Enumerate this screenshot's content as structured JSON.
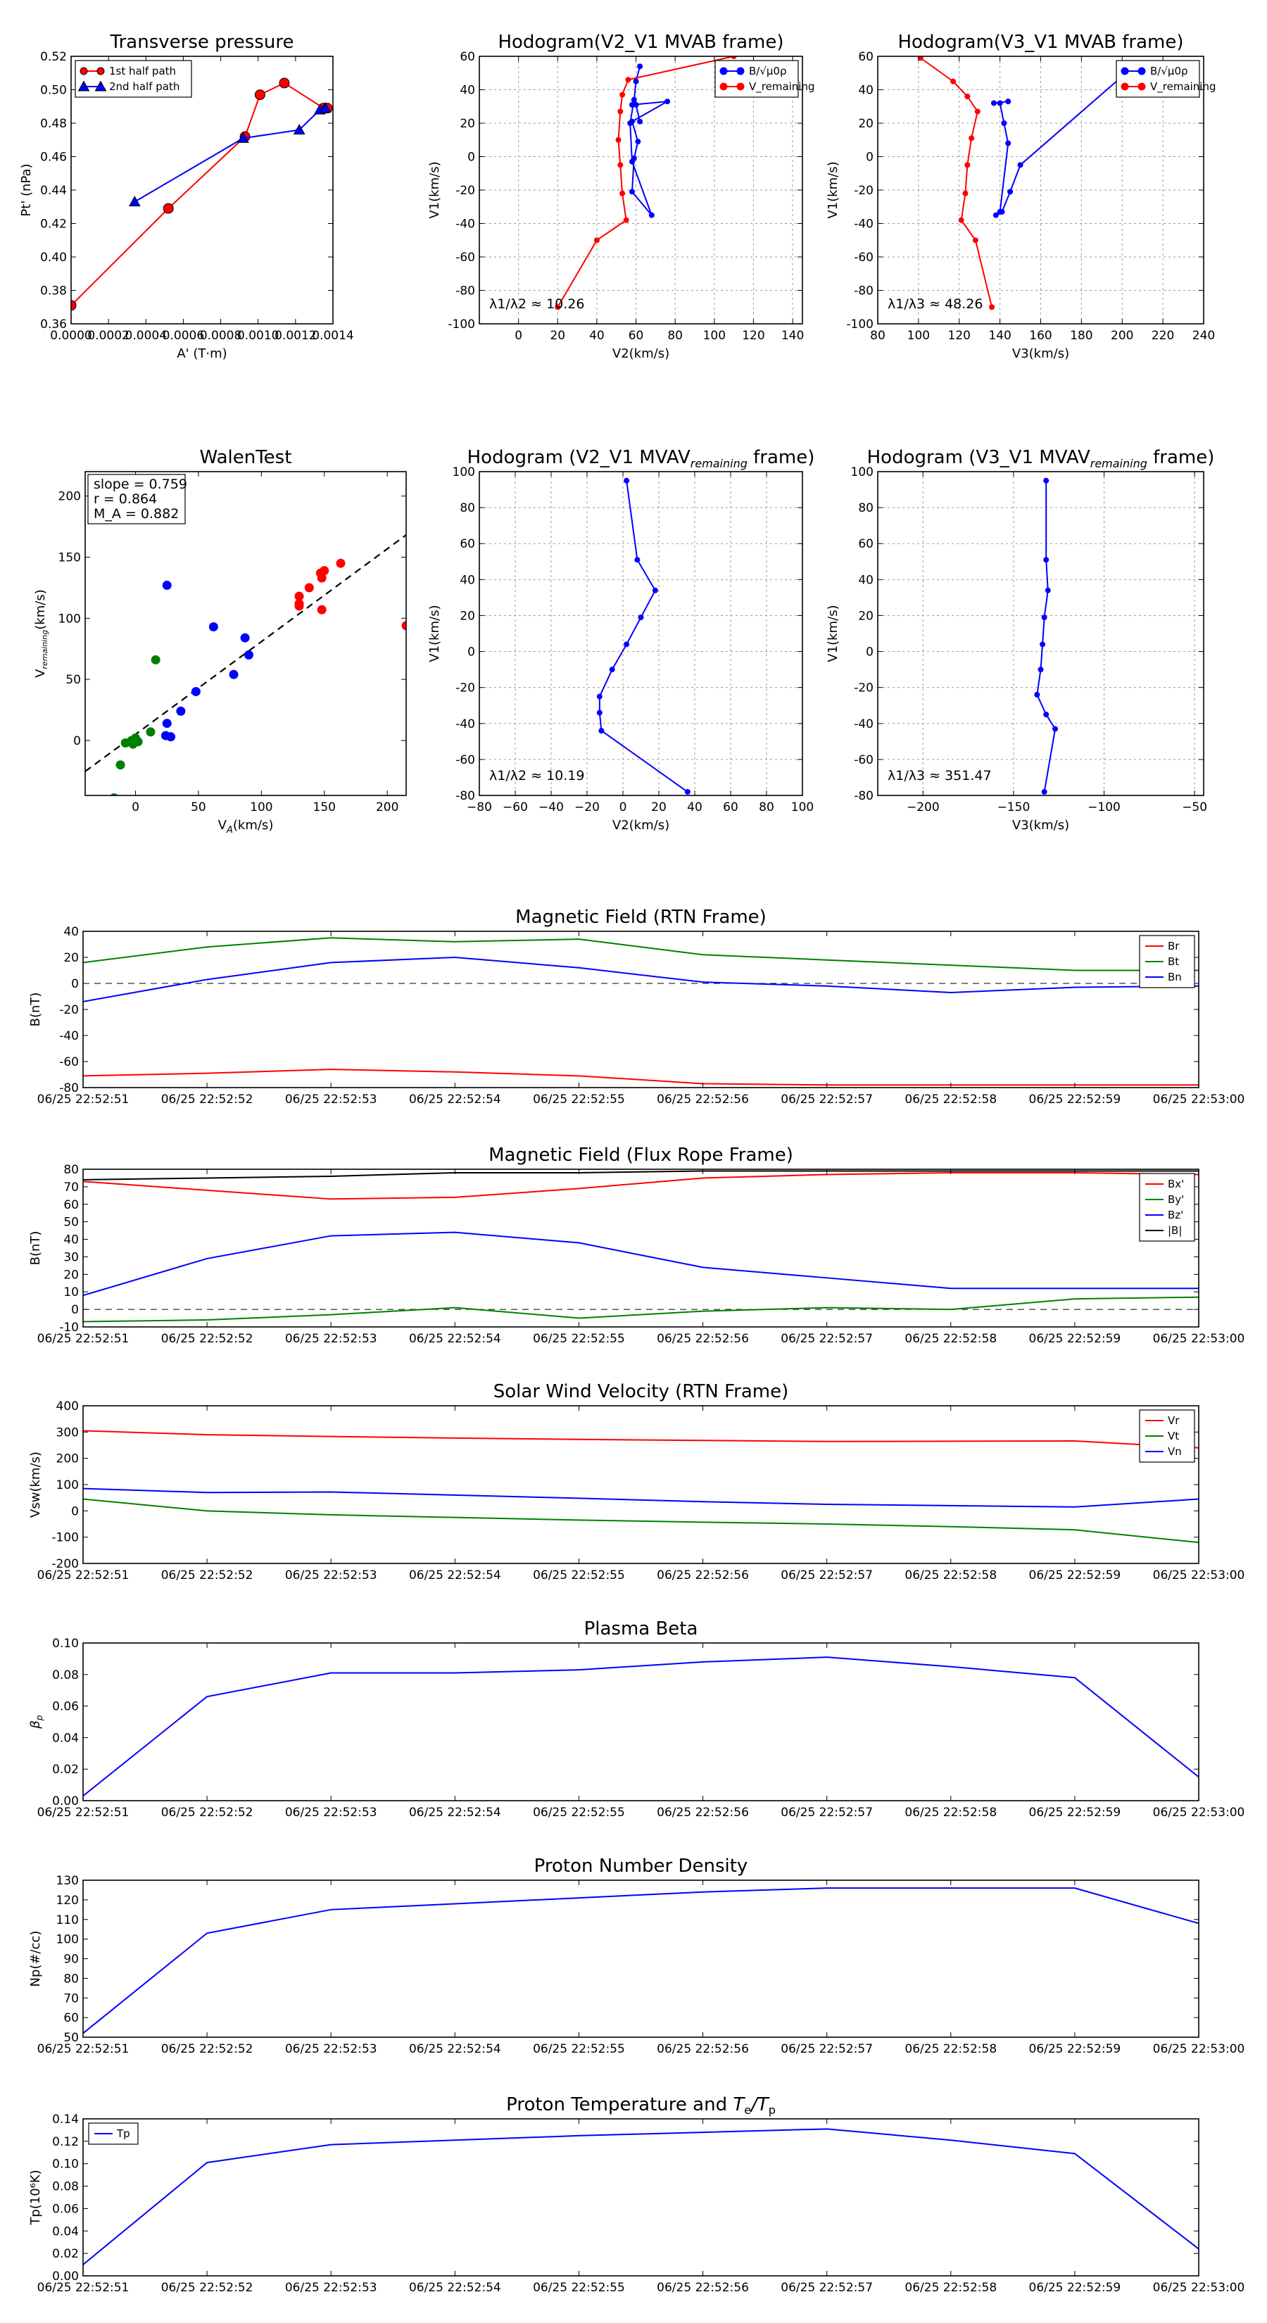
{
  "chart_data": [
    {
      "id": "tp",
      "type": "line",
      "title": "Transverse pressure",
      "xlabel": "A' (T·m)",
      "ylabel": "Pt' (nPa)",
      "xlim": [
        0,
        0.0014
      ],
      "ylim": [
        0.36,
        0.52
      ],
      "grid": false,
      "xticks": [
        0,
        0.0002,
        0.0004,
        0.0006,
        0.0008,
        0.001,
        0.0012,
        0.0014
      ],
      "xtick_labels": [
        "0.0000",
        "0.0002",
        "0.0004",
        "0.0006",
        "0.0008",
        "0.0010",
        "0.0012",
        "0.0014"
      ],
      "yticks": [
        0.36,
        0.38,
        0.4,
        0.42,
        0.44,
        0.46,
        0.48,
        0.5,
        0.52
      ],
      "ytick_labels": [
        "0.36",
        "0.38",
        "0.40",
        "0.42",
        "0.44",
        "0.46",
        "0.48",
        "0.50",
        "0.52"
      ],
      "legend_position": "top-left",
      "series": [
        {
          "name": "1st half path",
          "color": "#ff0000",
          "marker": "circle",
          "x": [
            0,
            0.00052,
            0.00093,
            0.00101,
            0.00114,
            0.00135,
            0.00137
          ],
          "y": [
            0.371,
            0.429,
            0.472,
            0.497,
            0.504,
            0.489,
            0.489
          ]
        },
        {
          "name": "2nd half path",
          "color": "#0000ff",
          "marker": "triangle",
          "x": [
            0.00034,
            0.00092,
            0.00122,
            0.00133,
            0.00136
          ],
          "y": [
            0.433,
            0.471,
            0.476,
            0.488,
            0.489
          ]
        }
      ]
    },
    {
      "id": "h2",
      "type": "line",
      "title": "Hodogram(V2_V1 MVAB frame)",
      "xlabel": "V2(km/s)",
      "ylabel": "V1(km/s)",
      "xlim": [
        -20,
        145
      ],
      "ylim": [
        -100,
        60
      ],
      "grid": true,
      "xticks": [
        0,
        20,
        40,
        60,
        80,
        100,
        120,
        140
      ],
      "yticks": [
        -100,
        -80,
        -60,
        -40,
        -20,
        0,
        20,
        40,
        60
      ],
      "legend_position": "top-right",
      "annotation": "λ1/λ2 ≈ 10.26",
      "series": [
        {
          "name": "B/√μ0ρ",
          "color": "#0000ff",
          "marker": "dot",
          "x": [
            62,
            60,
            59,
            57,
            58,
            68,
            58,
            59,
            61,
            58,
            76,
            58,
            60,
            62
          ],
          "y": [
            54,
            45,
            34,
            20,
            -3,
            -35,
            -21,
            -1,
            9,
            21,
            33,
            31,
            31,
            21
          ]
        },
        {
          "name": "V_remaining",
          "color": "#ff0000",
          "marker": "dot",
          "x": [
            20,
            40,
            55,
            53,
            52,
            51,
            52,
            53,
            56,
            110
          ],
          "y": [
            -90,
            -50,
            -38,
            -22,
            -5,
            10,
            27,
            37,
            46,
            60
          ]
        }
      ]
    },
    {
      "id": "h3",
      "type": "line",
      "title": "Hodogram(V3_V1 MVAB frame)",
      "xlabel": "V3(km/s)",
      "ylabel": "V1(km/s)",
      "xlim": [
        80,
        240
      ],
      "ylim": [
        -100,
        60
      ],
      "grid": true,
      "xticks": [
        80,
        100,
        120,
        140,
        160,
        180,
        200,
        220,
        240
      ],
      "yticks": [
        -100,
        -80,
        -60,
        -40,
        -20,
        0,
        20,
        40,
        60
      ],
      "legend_position": "top-right",
      "annotation": "λ1/λ3 ≈ 48.26",
      "series": [
        {
          "name": "B/√μ0ρ",
          "color": "#0000ff",
          "marker": "dot",
          "x": [
            200,
            150,
            145,
            141,
            138,
            140,
            144,
            142,
            140,
            137,
            144
          ],
          "y": [
            48,
            -5,
            -21,
            -33,
            -35,
            -33,
            8,
            20,
            32,
            32,
            33
          ]
        },
        {
          "name": "V_remaining",
          "color": "#ff0000",
          "marker": "dot",
          "x": [
            136,
            128,
            121,
            123,
            124,
            126,
            129,
            124,
            117,
            101
          ],
          "y": [
            -90,
            -50,
            -38,
            -22,
            -5,
            11,
            27,
            36,
            45,
            59
          ]
        }
      ]
    },
    {
      "id": "walen",
      "type": "scatter",
      "title": "WalenTest",
      "xlabel": "V_A(km/s)",
      "ylabel": "V_remaining(km/s)",
      "xlim": [
        -40,
        215
      ],
      "ylim": [
        -45,
        220
      ],
      "grid": false,
      "xticks": [
        0,
        50,
        100,
        150,
        200
      ],
      "yticks": [
        0,
        50,
        100,
        150,
        200
      ],
      "annotation_lines": [
        "slope = 0.759",
        "r = 0.864",
        "M_A = 0.882"
      ],
      "fit": {
        "slope": 0.759,
        "intercept": 5
      },
      "series": [
        {
          "name": "red",
          "color": "#ff0000",
          "x": [
            148,
            150,
            163,
            148,
            130,
            138,
            147,
            130,
            130,
            215
          ],
          "y": [
            133,
            139,
            145,
            107,
            118,
            125,
            137,
            110,
            112,
            94
          ]
        },
        {
          "name": "blue",
          "color": "#0000ff",
          "x": [
            25,
            62,
            78,
            87,
            90,
            48,
            36,
            25,
            28,
            24
          ],
          "y": [
            127,
            93,
            54,
            84,
            70,
            40,
            24,
            14,
            3,
            4
          ]
        },
        {
          "name": "green",
          "color": "#008000",
          "x": [
            16,
            12,
            0,
            -3,
            -2,
            2,
            -8,
            -12,
            -17
          ],
          "y": [
            66,
            7,
            2,
            0,
            -3,
            -1,
            -2,
            -20,
            -47
          ]
        }
      ]
    },
    {
      "id": "h2r",
      "type": "line",
      "title": "Hodogram (V2_V1 MVAV_remaining frame)",
      "xlabel": "V2(km/s)",
      "ylabel": "V1(km/s)",
      "xlim": [
        -80,
        100
      ],
      "ylim": [
        -80,
        100
      ],
      "grid": true,
      "xticks": [
        -80,
        -60,
        -40,
        -20,
        0,
        20,
        40,
        60,
        80,
        100
      ],
      "xtick_labels": [
        "−80",
        "−60",
        "−40",
        "−20",
        "0",
        "20",
        "40",
        "60",
        "80",
        "100"
      ],
      "yticks": [
        -80,
        -60,
        -40,
        -20,
        0,
        20,
        40,
        60,
        80,
        100
      ],
      "annotation": "λ1/λ2 ≈ 10.19",
      "series": [
        {
          "name": "V_remaining",
          "color": "#0000ff",
          "marker": "dot",
          "x": [
            36,
            -12,
            -13,
            -13,
            -6,
            2,
            10,
            18,
            8,
            2
          ],
          "y": [
            -78,
            -44,
            -34,
            -25,
            -10,
            4,
            19,
            34,
            51,
            95
          ]
        }
      ]
    },
    {
      "id": "h3r",
      "type": "line",
      "title": "Hodogram (V3_V1 MVAV_remaining frame)",
      "xlabel": "V3(km/s)",
      "ylabel": "V1(km/s)",
      "xlim": [
        -225,
        -45
      ],
      "ylim": [
        -80,
        100
      ],
      "grid": true,
      "xticks": [
        -200,
        -150,
        -100,
        -50
      ],
      "xtick_labels": [
        "−200",
        "−150",
        "−100",
        "−50"
      ],
      "yticks": [
        -80,
        -60,
        -40,
        -20,
        0,
        20,
        40,
        60,
        80,
        100
      ],
      "annotation": "λ1/λ3 ≈ 351.47",
      "series": [
        {
          "name": "V_remaining",
          "color": "#0000ff",
          "marker": "dot",
          "x": [
            -133,
            -127,
            -132,
            -137,
            -135,
            -134,
            -133,
            -131,
            -132,
            -132
          ],
          "y": [
            -78,
            -43,
            -35,
            -24,
            -10,
            4,
            19,
            34,
            51,
            95
          ]
        }
      ]
    },
    {
      "id": "bmag",
      "type": "line",
      "title": "Magnetic Field (RTN Frame)",
      "ylabel": "B(nT)",
      "x_labels": [
        "06/25 22:52:51",
        "06/25 22:52:52",
        "06/25 22:52:53",
        "06/25 22:52:54",
        "06/25 22:52:55",
        "06/25 22:52:56",
        "06/25 22:52:57",
        "06/25 22:52:58",
        "06/25 22:52:59",
        "06/25 22:53:00"
      ],
      "ylim": [
        -80,
        40
      ],
      "yticks": [
        -80,
        -60,
        -40,
        -20,
        0,
        20,
        40
      ],
      "yzero": true,
      "legend_position": "top-right",
      "series": [
        {
          "name": "Br",
          "color": "#ff0000",
          "values": [
            -71,
            -69,
            -66,
            -68,
            -71,
            -77,
            -78,
            -78,
            -78,
            -78
          ]
        },
        {
          "name": "Bt",
          "color": "#008000",
          "values": [
            16,
            28,
            35,
            32,
            34,
            22,
            18,
            14,
            10,
            10
          ]
        },
        {
          "name": "Bn",
          "color": "#0000ff",
          "values": [
            -14,
            3,
            16,
            20,
            12,
            1,
            -2,
            -7,
            -3,
            -2
          ]
        }
      ]
    },
    {
      "id": "bfr",
      "type": "line",
      "title": "Magnetic Field (Flux Rope Frame)",
      "ylabel": "B(nT)",
      "x_labels": [
        "06/25 22:52:51",
        "06/25 22:52:52",
        "06/25 22:52:53",
        "06/25 22:52:54",
        "06/25 22:52:55",
        "06/25 22:52:56",
        "06/25 22:52:57",
        "06/25 22:52:58",
        "06/25 22:52:59",
        "06/25 22:53:00"
      ],
      "ylim": [
        -10,
        80
      ],
      "yticks": [
        -10,
        0,
        10,
        20,
        30,
        40,
        50,
        60,
        70,
        80
      ],
      "yzero": true,
      "legend_position": "top-right",
      "series": [
        {
          "name": "Bx'",
          "color": "#ff0000",
          "values": [
            73,
            68,
            63,
            64,
            69,
            75,
            77,
            78,
            78,
            77
          ]
        },
        {
          "name": "By'",
          "color": "#008000",
          "values": [
            -7,
            -6,
            -3,
            1,
            -5,
            -1,
            1,
            0,
            6,
            7
          ]
        },
        {
          "name": "Bz'",
          "color": "#0000ff",
          "values": [
            8,
            29,
            42,
            44,
            38,
            24,
            18,
            12,
            12,
            12
          ]
        },
        {
          "name": "|B|",
          "color": "#000000",
          "values": [
            74,
            75,
            76,
            78,
            78,
            79,
            79,
            79,
            79,
            79
          ]
        }
      ]
    },
    {
      "id": "vsw",
      "type": "line",
      "title": "Solar Wind Velocity (RTN Frame)",
      "ylabel": "Vsw(km/s)",
      "x_labels": [
        "06/25 22:52:51",
        "06/25 22:52:52",
        "06/25 22:52:53",
        "06/25 22:52:54",
        "06/25 22:52:55",
        "06/25 22:52:56",
        "06/25 22:52:57",
        "06/25 22:52:58",
        "06/25 22:52:59",
        "06/25 22:53:00"
      ],
      "ylim": [
        -200,
        400
      ],
      "yticks": [
        -200,
        -100,
        0,
        100,
        200,
        300,
        400
      ],
      "legend_position": "top-right",
      "series": [
        {
          "name": "Vr",
          "color": "#ff0000",
          "values": [
            305,
            290,
            283,
            277,
            272,
            268,
            264,
            265,
            266,
            240
          ]
        },
        {
          "name": "Vt",
          "color": "#008000",
          "values": [
            45,
            0,
            -15,
            -25,
            -35,
            -43,
            -50,
            -60,
            -72,
            -120
          ]
        },
        {
          "name": "Vn",
          "color": "#0000ff",
          "values": [
            85,
            70,
            72,
            60,
            48,
            35,
            25,
            20,
            15,
            45
          ]
        }
      ]
    },
    {
      "id": "beta",
      "type": "line",
      "title": "Plasma Beta",
      "ylabel": "βp",
      "x_labels": [
        "06/25 22:52:51",
        "06/25 22:52:52",
        "06/25 22:52:53",
        "06/25 22:52:54",
        "06/25 22:52:55",
        "06/25 22:52:56",
        "06/25 22:52:57",
        "06/25 22:52:58",
        "06/25 22:52:59",
        "06/25 22:53:00"
      ],
      "ylim": [
        0,
        0.1
      ],
      "yticks": [
        0,
        0.02,
        0.04,
        0.06,
        0.08,
        0.1
      ],
      "ytick_labels": [
        "0.00",
        "0.02",
        "0.04",
        "0.06",
        "0.08",
        "0.10"
      ],
      "series": [
        {
          "name": "βp",
          "color": "#0000ff",
          "values": [
            0.003,
            0.066,
            0.081,
            0.081,
            0.083,
            0.088,
            0.091,
            0.085,
            0.078,
            0.015
          ]
        }
      ]
    },
    {
      "id": "np",
      "type": "line",
      "title": "Proton Number Density",
      "ylabel": "Np(#/cc)",
      "x_labels": [
        "06/25 22:52:51",
        "06/25 22:52:52",
        "06/25 22:52:53",
        "06/25 22:52:54",
        "06/25 22:52:55",
        "06/25 22:52:56",
        "06/25 22:52:57",
        "06/25 22:52:58",
        "06/25 22:52:59",
        "06/25 22:53:00"
      ],
      "ylim": [
        50,
        130
      ],
      "yticks": [
        50,
        60,
        70,
        80,
        90,
        100,
        110,
        120,
        130
      ],
      "series": [
        {
          "name": "Np",
          "color": "#0000ff",
          "values": [
            52,
            103,
            115,
            118,
            121,
            124,
            126,
            126,
            126,
            108
          ]
        }
      ]
    },
    {
      "id": "tpt",
      "type": "line",
      "title": "Proton Temperature and Te/Tp",
      "ylabel": "Tp(10⁶K)",
      "x_labels": [
        "06/25 22:52:51",
        "06/25 22:52:52",
        "06/25 22:52:53",
        "06/25 22:52:54",
        "06/25 22:52:55",
        "06/25 22:52:56",
        "06/25 22:52:57",
        "06/25 22:52:58",
        "06/25 22:52:59",
        "06/25 22:53:00"
      ],
      "ylim": [
        0,
        0.14
      ],
      "yticks": [
        0,
        0.02,
        0.04,
        0.06,
        0.08,
        0.1,
        0.12,
        0.14
      ],
      "ytick_labels": [
        "0.00",
        "0.02",
        "0.04",
        "0.06",
        "0.08",
        "0.10",
        "0.12",
        "0.14"
      ],
      "legend_position": "top-left",
      "series": [
        {
          "name": "Tp",
          "color": "#0000ff",
          "values": [
            0.01,
            0.101,
            0.117,
            0.121,
            0.125,
            0.128,
            0.131,
            0.121,
            0.109,
            0.024
          ]
        }
      ]
    }
  ]
}
